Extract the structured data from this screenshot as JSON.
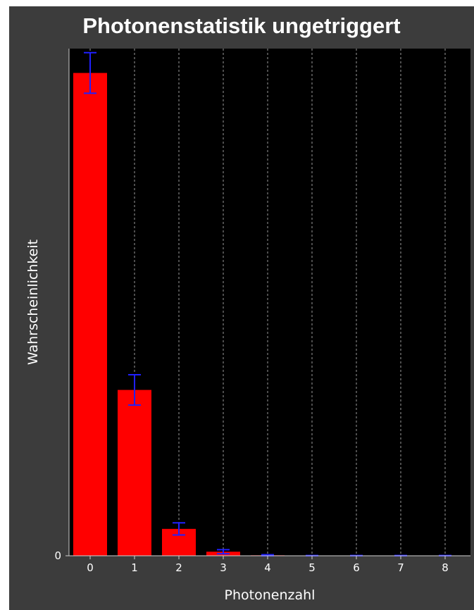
{
  "chart_data": {
    "type": "bar",
    "title": "Photonenstatistik ungetriggert",
    "xlabel": "Photonenzahl",
    "ylabel": "Wahrscheinlichkeit",
    "categories": [
      "0",
      "1",
      "2",
      "3",
      "4",
      "5",
      "6",
      "7",
      "8"
    ],
    "values": [
      0.952,
      0.327,
      0.053,
      0.008,
      0.001,
      0,
      0,
      0,
      0
    ],
    "errors": [
      0.04,
      0.03,
      0.012,
      0.004,
      0.001,
      0.0005,
      0.0005,
      0.0005,
      0.0005
    ],
    "ylim": [
      0,
      1.0
    ],
    "y_ticks": [
      "0"
    ],
    "grid": "vertical-dashed",
    "colors": {
      "bar": "#ff0000",
      "error_bar": "#2020ff",
      "plot_bg": "#000000",
      "frame_bg": "#3c3c3c",
      "grid": "#9a9a9a"
    }
  }
}
